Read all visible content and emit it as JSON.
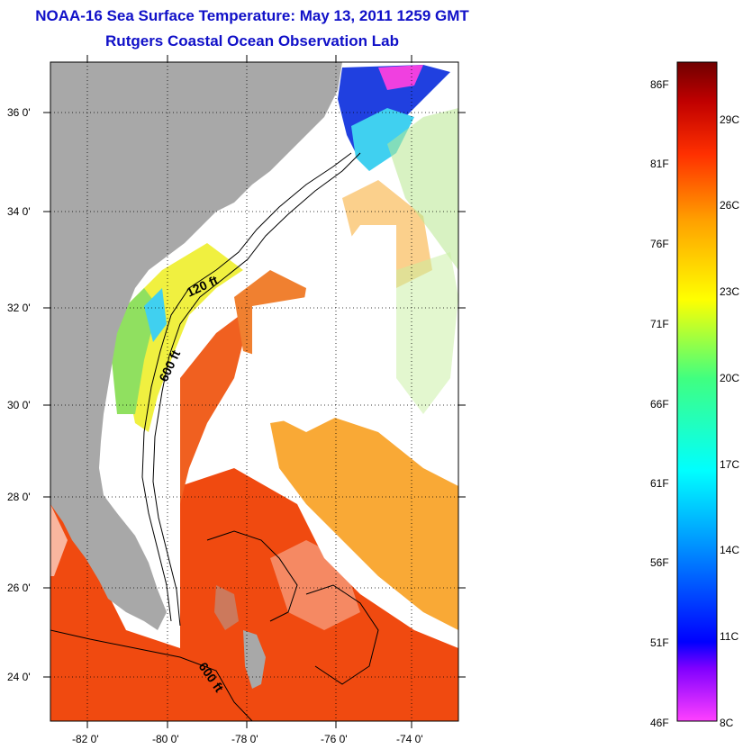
{
  "title": {
    "line1": "NOAA-16 Sea Surface Temperature:  May 13, 2011 1259 GMT",
    "line2": "Rutgers Coastal Ocean Observation Lab"
  },
  "map": {
    "latitude_labels": [
      "36 0'",
      "34 0'",
      "32 0'",
      "30 0'",
      "28 0'",
      "26 0'",
      "24 0'"
    ],
    "longitude_labels": [
      "-82 0'",
      "-80 0'",
      "-78 0'",
      "-76 0'",
      "-74 0'"
    ],
    "contour_labels": [
      "120 ft",
      "600 ft",
      "600 ft"
    ],
    "colors": {
      "land": "#a8a8a8",
      "cloud": "#ffffff",
      "warm_water": "#f04a10",
      "orange_water": "#f8a020",
      "yellow_water": "#f0f040",
      "green_water": "#90e060",
      "cyan_water": "#40d0f0",
      "blue_water": "#2040e0",
      "magenta_water": "#f040e0"
    }
  },
  "colorbar": {
    "fahrenheit_labels": [
      "86F",
      "81F",
      "76F",
      "71F",
      "66F",
      "61F",
      "56F",
      "51F",
      "46F"
    ],
    "celsius_labels": [
      "29C",
      "26C",
      "23C",
      "20C",
      "17C",
      "14C",
      "11C",
      "8C"
    ],
    "colors": [
      "#ff40ff",
      "#8000ff",
      "#0000ff",
      "#00a0ff",
      "#00ffff",
      "#40ff80",
      "#ffff00",
      "#ffa000",
      "#ff3000",
      "#c00000",
      "#700000"
    ]
  }
}
